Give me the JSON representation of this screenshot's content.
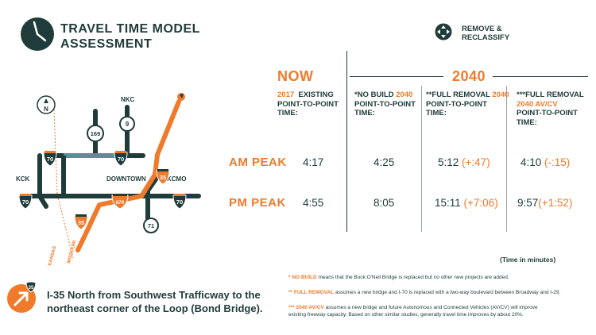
{
  "header": {
    "title_line1": "TRAVEL TIME MODEL",
    "title_line2": "ASSESSMENT",
    "remove_label_line1": "REMOVE &",
    "remove_label_line2": "RECLASSIFY"
  },
  "periods": {
    "now": "NOW",
    "future": "2040"
  },
  "columns": [
    {
      "year": "2017",
      "prefix": "",
      "line1": "EXISTING",
      "line2": "POINT-TO-POINT",
      "line3": "TIME:"
    },
    {
      "year": "2040",
      "prefix": "*NO BUILD",
      "line1": "",
      "line2": "POINT-TO-POINT",
      "line3": "TIME:"
    },
    {
      "year": "2040",
      "prefix": "**FULL REMOVAL",
      "line1": "",
      "line2": "POINT-TO-POINT",
      "line3": "TIME:"
    },
    {
      "year": "2040 AV/CV",
      "prefix": "***FULL REMOVAL",
      "line1": "",
      "line2": "POINT-TO-POINT",
      "line3": "TIME:"
    }
  ],
  "rows": [
    {
      "label": "AM PEAK",
      "v1": "4:17",
      "v2": "4:25",
      "v3": "5:12",
      "d3": "(+:47)",
      "v4": "4:10",
      "d4": "(-:15)"
    },
    {
      "label": "PM PEAK",
      "v1": "4:55",
      "v2": "8:05",
      "v3": "15:11",
      "d3": "(+7:06)",
      "v4": "9:57",
      "d4": "(+1:52)"
    }
  ],
  "units_note": "(Time in minutes)",
  "route": {
    "badge": "35",
    "line1": "I-35 North from Southwest Trafficway to the",
    "line2": "northeast corner of the Loop (Bond Bridge)."
  },
  "notes": [
    {
      "key": "* NO BUILD",
      "text": " means that the Buck O'Neil Bridge is replaced but no other new projects are added."
    },
    {
      "key": "** FULL REMOVAL",
      "text": " assumes a new bridge and I-70 is replaced with a two-way boulevard between Broadway and I-29."
    },
    {
      "key": "*** 2040 AV/CV",
      "text": " assumes a new bridge and future Autonomous and Connected Vehicles (AV/CV) will improve"
    },
    {
      "key": "",
      "text": "existing freeway capacity. Based on other similar studies, generally travel time improves by about 20%."
    }
  ],
  "map": {
    "labels": {
      "nkc": "NKC",
      "kck": "KCK",
      "kcmo": "KCMO",
      "downtown": "DOWNTOWN",
      "kansas": "KANSAS",
      "missouri": "MISSOURI",
      "north": "N"
    },
    "shields": {
      "s169": "169",
      "s9": "9",
      "s70a": "70",
      "s70b": "70",
      "s35a": "35",
      "s70c": "70",
      "s670": "670",
      "s70d": "70",
      "s35b": "35",
      "s71": "71"
    }
  },
  "colors": {
    "dark": "#1f3b3a",
    "orange": "#f07a2b",
    "blue": "#5f8d94"
  }
}
